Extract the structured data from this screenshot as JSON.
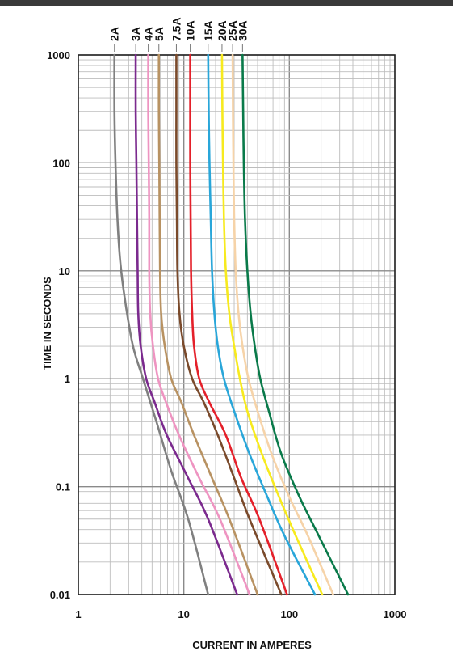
{
  "chart_data": {
    "type": "line",
    "x_scale": "log",
    "y_scale": "log",
    "xlim": [
      1,
      1000
    ],
    "ylim": [
      0.01,
      1000
    ],
    "xlabel": "CURRENT IN AMPERES",
    "ylabel": "TIME IN SECONDS",
    "x_ticks": [
      1,
      10,
      100,
      1000
    ],
    "x_tick_labels": [
      "1",
      "10",
      "100",
      "1000"
    ],
    "y_ticks": [
      0.01,
      0.1,
      1,
      10,
      100,
      1000
    ],
    "y_tick_labels": [
      "0.01",
      "0.1",
      "1",
      "10",
      "100",
      "1000"
    ],
    "grid": true,
    "legend": "labels above plot at the top of each curve",
    "series": [
      {
        "name": "2A",
        "color": "#808080",
        "points": [
          [
            2.2,
            1000
          ],
          [
            2.2,
            300
          ],
          [
            2.25,
            100
          ],
          [
            2.35,
            30
          ],
          [
            2.5,
            12
          ],
          [
            2.8,
            5
          ],
          [
            3.3,
            2
          ],
          [
            4.1,
            1
          ],
          [
            5.5,
            0.4
          ],
          [
            7.6,
            0.14
          ],
          [
            11,
            0.05
          ],
          [
            17,
            0.01
          ]
        ]
      },
      {
        "name": "3A",
        "color": "#7b2a8e",
        "points": [
          [
            3.5,
            1000
          ],
          [
            3.5,
            300
          ],
          [
            3.55,
            100
          ],
          [
            3.6,
            30
          ],
          [
            3.65,
            10
          ],
          [
            3.7,
            4
          ],
          [
            3.9,
            2
          ],
          [
            4.4,
            1
          ],
          [
            5.3,
            0.6
          ],
          [
            6.9,
            0.3
          ],
          [
            11,
            0.12
          ],
          [
            17,
            0.05
          ],
          [
            32,
            0.01
          ]
        ]
      },
      {
        "name": "4A",
        "color": "#ee94c1",
        "points": [
          [
            4.6,
            1000
          ],
          [
            4.6,
            300
          ],
          [
            4.65,
            100
          ],
          [
            4.7,
            30
          ],
          [
            4.7,
            10
          ],
          [
            4.8,
            4
          ],
          [
            5.1,
            2
          ],
          [
            5.7,
            1
          ],
          [
            6.8,
            0.6
          ],
          [
            9,
            0.3
          ],
          [
            14,
            0.12
          ],
          [
            22,
            0.05
          ],
          [
            42,
            0.01
          ]
        ]
      },
      {
        "name": "5A",
        "color": "#b89262",
        "points": [
          [
            5.8,
            1000
          ],
          [
            5.8,
            300
          ],
          [
            5.85,
            100
          ],
          [
            5.9,
            30
          ],
          [
            5.95,
            10
          ],
          [
            6.1,
            4
          ],
          [
            6.6,
            2
          ],
          [
            7.6,
            1
          ],
          [
            9.5,
            0.6
          ],
          [
            12.5,
            0.3
          ],
          [
            18.5,
            0.12
          ],
          [
            27,
            0.05
          ],
          [
            50,
            0.01
          ]
        ]
      },
      {
        "name": "7.5A",
        "color": "#7a4a2b",
        "points": [
          [
            8.5,
            1000
          ],
          [
            8.5,
            300
          ],
          [
            8.5,
            100
          ],
          [
            8.6,
            30
          ],
          [
            8.7,
            10
          ],
          [
            9.1,
            4
          ],
          [
            10,
            2
          ],
          [
            12,
            1
          ],
          [
            15.5,
            0.6
          ],
          [
            21,
            0.3
          ],
          [
            30,
            0.12
          ],
          [
            42,
            0.05
          ],
          [
            84,
            0.01
          ]
        ]
      },
      {
        "name": "10A",
        "color": "#e4202a",
        "points": [
          [
            11.5,
            1000
          ],
          [
            11.5,
            300
          ],
          [
            11.5,
            100
          ],
          [
            11.6,
            30
          ],
          [
            11.7,
            10
          ],
          [
            12,
            4
          ],
          [
            12.5,
            2
          ],
          [
            14,
            1
          ],
          [
            17.5,
            0.6
          ],
          [
            25,
            0.3
          ],
          [
            35,
            0.12
          ],
          [
            52,
            0.05
          ],
          [
            95,
            0.01
          ]
        ]
      },
      {
        "name": "15A",
        "color": "#29a6d9",
        "points": [
          [
            17,
            1000
          ],
          [
            17.2,
            300
          ],
          [
            17.5,
            100
          ],
          [
            18,
            30
          ],
          [
            18.5,
            10
          ],
          [
            19.5,
            4
          ],
          [
            21,
            2
          ],
          [
            24,
            1
          ],
          [
            30,
            0.5
          ],
          [
            42,
            0.2
          ],
          [
            62,
            0.08
          ],
          [
            90,
            0.035
          ],
          [
            175,
            0.01
          ]
        ]
      },
      {
        "name": "20A",
        "color": "#f7ea1e",
        "points": [
          [
            23,
            1000
          ],
          [
            23.2,
            300
          ],
          [
            23.5,
            100
          ],
          [
            24,
            30
          ],
          [
            25,
            10
          ],
          [
            27,
            4
          ],
          [
            30,
            2
          ],
          [
            34,
            1
          ],
          [
            40,
            0.5
          ],
          [
            55,
            0.2
          ],
          [
            80,
            0.08
          ],
          [
            115,
            0.035
          ],
          [
            205,
            0.01
          ]
        ]
      },
      {
        "name": "25A",
        "color": "#f6d3a8",
        "points": [
          [
            29,
            1000
          ],
          [
            29.2,
            300
          ],
          [
            29.5,
            100
          ],
          [
            30,
            30
          ],
          [
            31,
            10
          ],
          [
            33,
            4
          ],
          [
            36,
            2
          ],
          [
            41,
            1
          ],
          [
            50,
            0.5
          ],
          [
            68,
            0.2
          ],
          [
            100,
            0.08
          ],
          [
            150,
            0.035
          ],
          [
            260,
            0.01
          ]
        ]
      },
      {
        "name": "30A",
        "color": "#0a7a4a",
        "points": [
          [
            36,
            1000
          ],
          [
            36.5,
            300
          ],
          [
            37,
            100
          ],
          [
            38,
            30
          ],
          [
            40,
            10
          ],
          [
            43,
            4
          ],
          [
            47,
            2
          ],
          [
            53,
            1
          ],
          [
            64,
            0.5
          ],
          [
            84,
            0.2
          ],
          [
            125,
            0.08
          ],
          [
            190,
            0.035
          ],
          [
            360,
            0.01
          ]
        ]
      }
    ]
  }
}
